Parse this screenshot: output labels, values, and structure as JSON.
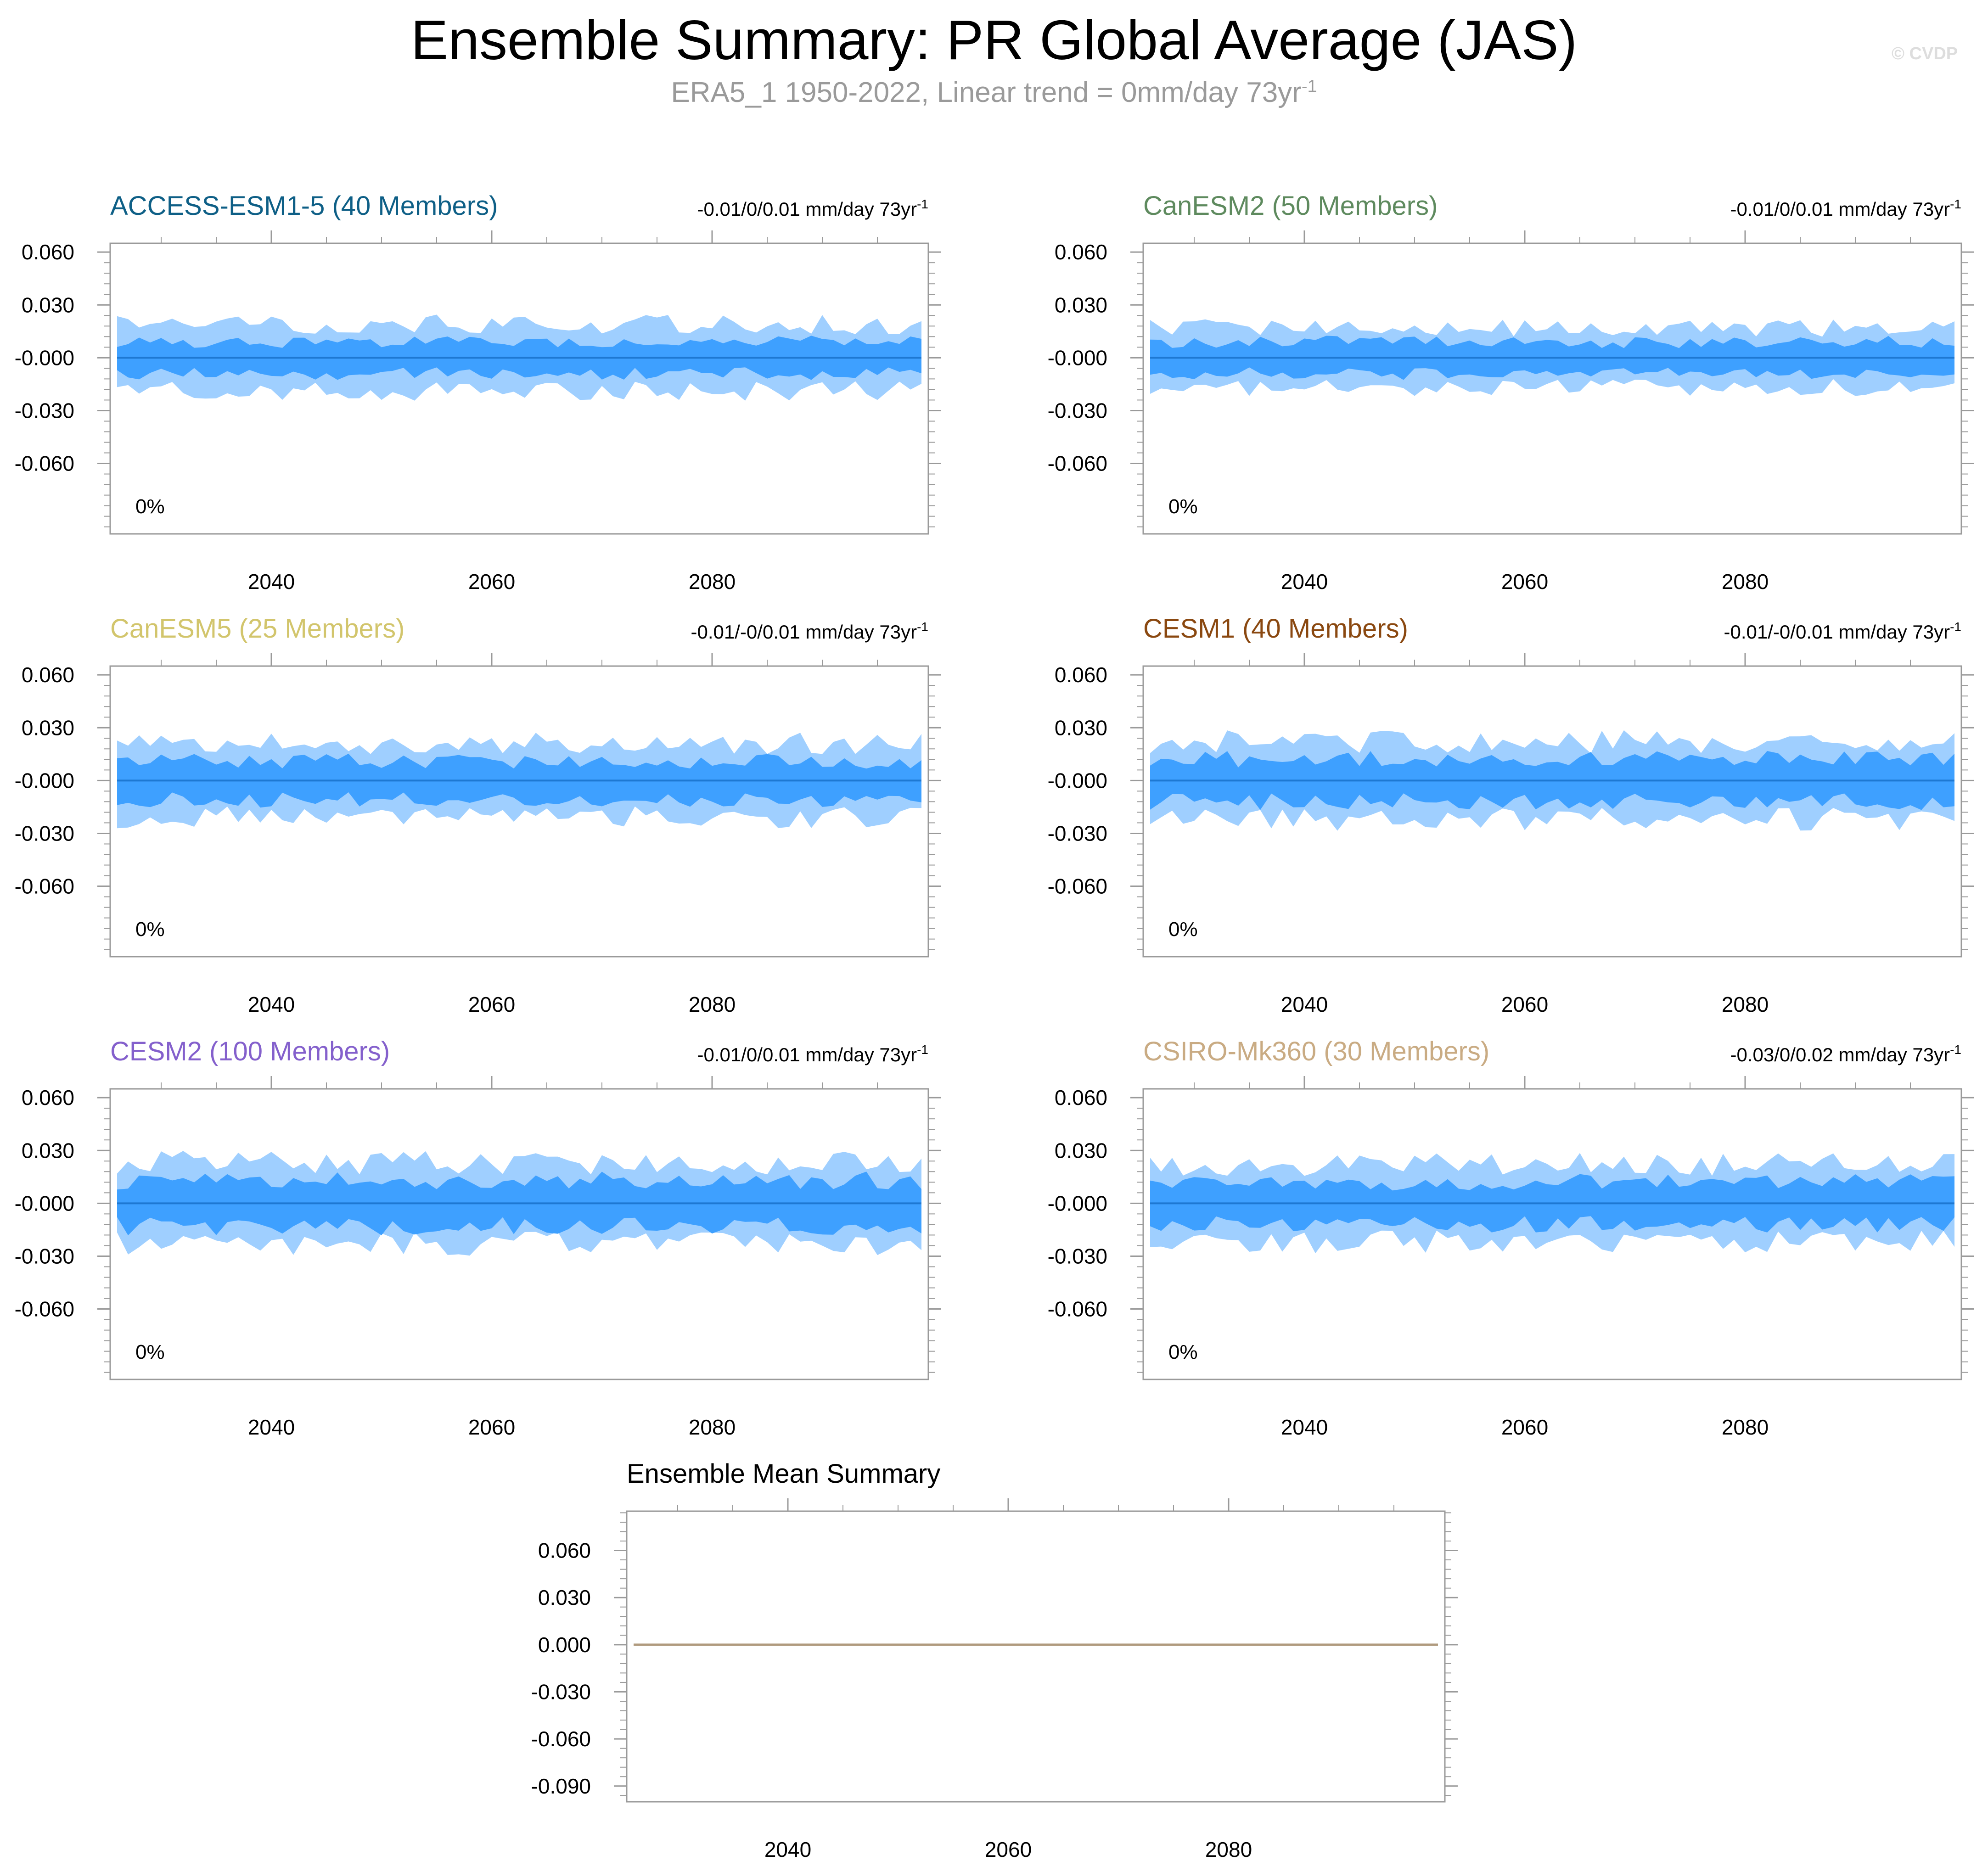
{
  "title": "Ensemble Summary: PR Global Average (JAS)",
  "subtitle": {
    "text": "ERA5_1 1950-2022, Linear trend = 0mm/day 73yr",
    "superscript": "-1"
  },
  "copyright": "© CVDP",
  "colors": {
    "outer_band": "#9fcfff",
    "inner_band": "#3ea0ff",
    "median_line": "#1e78d2",
    "mean_line": "#b09a7e",
    "frame": "#9a9a9a"
  },
  "chart_data": [
    {
      "type": "area",
      "id": "panel-access",
      "title": "ACCESS-ESM1-5 (40 Members)",
      "title_color": "#0e5f86",
      "trend_label": "-0.01/0/0.01 mm/day 73yr",
      "trend_sup": "-1",
      "percent_label": "0%",
      "x_range": [
        2026,
        2099
      ],
      "x_ticks": [
        2040,
        2060,
        2080
      ],
      "ylim": [
        -0.1,
        0.065
      ],
      "y_ticks": [
        "0.060",
        "0.030",
        "-0.000",
        "-0.030",
        "-0.060"
      ],
      "y_tick_values": [
        0.06,
        0.03,
        0,
        -0.03,
        -0.06
      ],
      "spread": {
        "outer": 0.019,
        "inner": 0.009,
        "seed": 11
      },
      "median": 0.0
    },
    {
      "type": "area",
      "id": "panel-canesm2",
      "title": "CanESM2 (50 Members)",
      "title_color": "#5e8a5e",
      "trend_label": "-0.01/0/0.01 mm/day 73yr",
      "trend_sup": "-1",
      "percent_label": "0%",
      "x_range": [
        2026,
        2099
      ],
      "x_ticks": [
        2040,
        2060,
        2080
      ],
      "ylim": [
        -0.1,
        0.065
      ],
      "y_ticks": [
        "0.060",
        "0.030",
        "-0.000",
        "-0.030",
        "-0.060"
      ],
      "y_tick_values": [
        0.06,
        0.03,
        0,
        -0.03,
        -0.06
      ],
      "spread": {
        "outer": 0.017,
        "inner": 0.009,
        "seed": 23
      },
      "median": 0.0
    },
    {
      "type": "area",
      "id": "panel-canesm5",
      "title": "CanESM5 (25 Members)",
      "title_color": "#d2c56c",
      "trend_label": "-0.01/-0/0.01 mm/day 73yr",
      "trend_sup": "-1",
      "percent_label": "0%",
      "x_range": [
        2026,
        2099
      ],
      "x_ticks": [
        2040,
        2060,
        2080
      ],
      "ylim": [
        -0.1,
        0.065
      ],
      "y_ticks": [
        "0.060",
        "0.030",
        "-0.000",
        "-0.030",
        "-0.060"
      ],
      "y_tick_values": [
        0.06,
        0.03,
        0,
        -0.03,
        -0.06
      ],
      "spread": {
        "outer": 0.021,
        "inner": 0.011,
        "seed": 37
      },
      "median": 0.0
    },
    {
      "type": "area",
      "id": "panel-cesm1",
      "title": "CESM1 (40 Members)",
      "title_color": "#8a4810",
      "trend_label": "-0.01/-0/0.01 mm/day 73yr",
      "trend_sup": "-1",
      "percent_label": "0%",
      "x_range": [
        2026,
        2099
      ],
      "x_ticks": [
        2040,
        2060,
        2080
      ],
      "ylim": [
        -0.1,
        0.065
      ],
      "y_ticks": [
        "0.060",
        "0.030",
        "-0.000",
        "-0.030",
        "-0.060"
      ],
      "y_tick_values": [
        0.06,
        0.03,
        0,
        -0.03,
        -0.06
      ],
      "spread": {
        "outer": 0.022,
        "inner": 0.012,
        "seed": 53
      },
      "median": 0.0
    },
    {
      "type": "area",
      "id": "panel-cesm2",
      "title": "CESM2 (100 Members)",
      "title_color": "#8460cc",
      "trend_label": "-0.01/0/0.01 mm/day 73yr",
      "trend_sup": "-1",
      "percent_label": "0%",
      "x_range": [
        2026,
        2099
      ],
      "x_ticks": [
        2040,
        2060,
        2080
      ],
      "ylim": [
        -0.1,
        0.065
      ],
      "y_ticks": [
        "0.060",
        "0.030",
        "-0.000",
        "-0.030",
        "-0.060"
      ],
      "y_tick_values": [
        0.06,
        0.03,
        0,
        -0.03,
        -0.06
      ],
      "spread": {
        "outer": 0.023,
        "inner": 0.013,
        "seed": 71
      },
      "median": 0.0
    },
    {
      "type": "area",
      "id": "panel-csiro",
      "title": "CSIRO-Mk360 (30 Members)",
      "title_color": "#c9ab83",
      "trend_label": "-0.03/0/0.02 mm/day 73yr",
      "trend_sup": "-1",
      "percent_label": "0%",
      "x_range": [
        2026,
        2099
      ],
      "x_ticks": [
        2040,
        2060,
        2080
      ],
      "ylim": [
        -0.1,
        0.065
      ],
      "y_ticks": [
        "0.060",
        "0.030",
        "-0.000",
        "-0.030",
        "-0.060"
      ],
      "y_tick_values": [
        0.06,
        0.03,
        0,
        -0.03,
        -0.06
      ],
      "spread": {
        "outer": 0.022,
        "inner": 0.012,
        "seed": 97
      },
      "median": 0.0
    },
    {
      "type": "line",
      "id": "panel-mean",
      "title": "Ensemble Mean Summary",
      "title_color": "#000000",
      "x_range": [
        2026,
        2099
      ],
      "x_ticks": [
        2040,
        2060,
        2080
      ],
      "ylim": [
        -0.1,
        0.085
      ],
      "y_ticks": [
        "0.060",
        "0.030",
        "0.000",
        "-0.030",
        "-0.060",
        "-0.090"
      ],
      "y_tick_values": [
        0.06,
        0.03,
        0,
        -0.03,
        -0.06,
        -0.09
      ],
      "series": [
        {
          "name": "ensemble-mean",
          "x": [
            2026,
            2099
          ],
          "values": [
            0.0,
            0.0
          ]
        }
      ]
    }
  ]
}
